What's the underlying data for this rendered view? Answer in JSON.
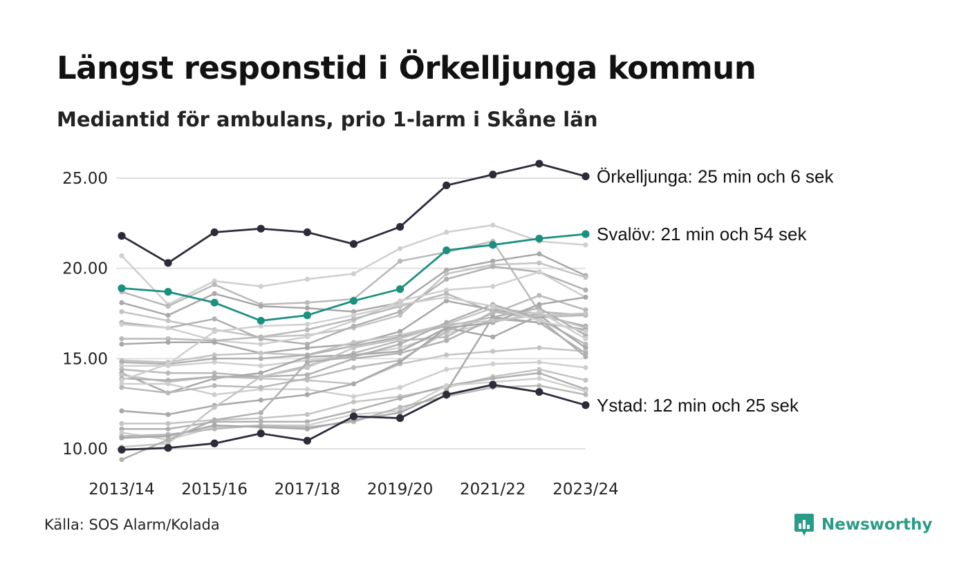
{
  "header": {
    "title": "Längst responstid i Örkelljunga kommun",
    "subtitle": "Mediantid för ambulans, prio 1-larm i Skåne län"
  },
  "footer": {
    "source": "Källa: SOS Alarm/Kolada",
    "brand": "Newsworthy",
    "brand_color": "#2a9b87"
  },
  "chart_data": {
    "type": "line",
    "title": "Längst responstid i Örkelljunga kommun",
    "subtitle": "Mediantid för ambulans, prio 1-larm i Skåne län",
    "xlabel": "",
    "ylabel": "",
    "x": [
      "2013/14",
      "2014/15",
      "2015/16",
      "2016/17",
      "2017/18",
      "2018/19",
      "2019/20",
      "2020/21",
      "2021/22",
      "2022/23",
      "2023/24"
    ],
    "x_tick_labels": [
      "2013/14",
      "2015/16",
      "2017/18",
      "2019/20",
      "2021/22",
      "2023/24"
    ],
    "ylim": [
      9.5,
      26
    ],
    "y_ticks": [
      10,
      15,
      20,
      25
    ],
    "y_tick_labels": [
      "10.00",
      "15.00",
      "20.00",
      "25.00"
    ],
    "grid": "horizontal",
    "highlighted_series": [
      {
        "label": "Örkelljunga: 25 min och 6 sek",
        "color": "#2b2b3a",
        "values": [
          21.8,
          20.3,
          22.0,
          22.2,
          22.0,
          21.35,
          22.3,
          24.6,
          25.2,
          25.8,
          25.1
        ]
      },
      {
        "label": "Svalöv: 21 min och 54 sek",
        "color": "#1a9080",
        "values": [
          18.9,
          18.7,
          18.1,
          17.1,
          17.4,
          18.2,
          18.85,
          21.0,
          21.3,
          21.65,
          21.9
        ]
      },
      {
        "label": "Ystad: 12 min och 25 sek",
        "color": "#2b2b3a",
        "values": [
          9.95,
          10.05,
          10.3,
          10.85,
          10.45,
          11.8,
          11.7,
          13.0,
          13.55,
          13.15,
          12.42
        ]
      }
    ],
    "background_series": [
      {
        "values": [
          20.7,
          18.0,
          19.3,
          19.0,
          19.4,
          19.7,
          21.1,
          22.0,
          22.4,
          21.5,
          21.3
        ]
      },
      {
        "values": [
          18.7,
          17.9,
          19.1,
          18.0,
          18.1,
          18.3,
          20.4,
          20.9,
          21.5,
          17.6,
          17.4
        ]
      },
      {
        "values": [
          18.1,
          17.4,
          18.6,
          17.9,
          17.8,
          17.6,
          18.1,
          19.9,
          20.4,
          20.8,
          19.6
        ]
      },
      {
        "values": [
          17.6,
          17.1,
          16.6,
          16.2,
          16.3,
          16.7,
          17.4,
          19.7,
          20.2,
          20.3,
          19.5
        ]
      },
      {
        "values": [
          17.0,
          16.7,
          17.2,
          16.1,
          15.8,
          16.8,
          17.6,
          19.4,
          20.1,
          19.8,
          18.8
        ]
      },
      {
        "values": [
          16.9,
          16.7,
          16.0,
          15.8,
          16.2,
          17.1,
          18.2,
          18.8,
          19.0,
          19.8,
          18.4
        ]
      },
      {
        "values": [
          16.1,
          16.1,
          16.0,
          16.2,
          16.6,
          17.2,
          17.9,
          18.6,
          17.6,
          17.3,
          17.4
        ]
      },
      {
        "values": [
          15.8,
          15.9,
          15.9,
          15.3,
          15.6,
          15.8,
          16.5,
          18.2,
          17.7,
          17.4,
          16.8
        ]
      },
      {
        "values": [
          14.9,
          14.8,
          15.2,
          15.3,
          15.2,
          15.9,
          16.3,
          16.9,
          17.8,
          17.5,
          16.7
        ]
      },
      {
        "values": [
          14.8,
          14.7,
          15.0,
          15.0,
          15.2,
          15.7,
          16.2,
          16.8,
          17.3,
          17.8,
          16.3
        ]
      },
      {
        "values": [
          14.6,
          14.6,
          14.8,
          14.6,
          14.9,
          15.2,
          15.6,
          16.4,
          17.0,
          17.6,
          16.1
        ]
      },
      {
        "values": [
          14.4,
          14.2,
          14.2,
          14.0,
          14.6,
          15.3,
          16.0,
          16.2,
          17.6,
          17.2,
          15.8
        ]
      },
      {
        "values": [
          14.2,
          13.1,
          13.9,
          14.2,
          15.1,
          15.2,
          15.4,
          16.7,
          16.2,
          17.4,
          15.6
        ]
      },
      {
        "values": [
          14.1,
          13.7,
          14.0,
          13.9,
          13.8,
          13.6,
          14.7,
          15.2,
          15.4,
          15.6,
          15.4
        ]
      },
      {
        "values": [
          13.9,
          13.8,
          14.0,
          14.0,
          14.1,
          15.0,
          15.3,
          16.0,
          17.2,
          17.0,
          15.3
        ]
      },
      {
        "values": [
          13.6,
          13.6,
          13.0,
          13.3,
          13.3,
          12.9,
          13.4,
          14.4,
          14.7,
          14.8,
          14.5
        ]
      },
      {
        "values": [
          13.4,
          13.1,
          13.5,
          13.4,
          13.9,
          14.5,
          14.9,
          16.5,
          17.5,
          18.5,
          17.7
        ]
      },
      {
        "values": [
          12.1,
          11.9,
          12.4,
          12.7,
          13.0,
          13.6,
          14.8,
          16.7,
          17.0,
          18.0,
          18.4
        ]
      },
      {
        "values": [
          11.4,
          11.4,
          11.6,
          11.7,
          11.9,
          12.6,
          12.9,
          13.4,
          14.0,
          14.4,
          13.8
        ]
      },
      {
        "values": [
          11.1,
          11.1,
          11.5,
          11.5,
          11.5,
          12.1,
          12.8,
          13.5,
          13.9,
          14.2,
          13.3
        ]
      },
      {
        "values": [
          10.9,
          10.5,
          11.2,
          11.3,
          11.3,
          11.9,
          12.1,
          13.5,
          13.7,
          13.9,
          13.2
        ]
      },
      {
        "values": [
          10.7,
          10.8,
          11.1,
          11.3,
          11.2,
          11.5,
          12.3,
          12.9,
          13.4,
          13.5,
          13.0
        ]
      },
      {
        "values": [
          10.6,
          10.7,
          11.3,
          11.2,
          11.1,
          11.6,
          12.0,
          13.2,
          17.3,
          17.0,
          16.6
        ]
      },
      {
        "values": [
          10.1,
          10.3,
          12.3,
          14.0,
          14.5,
          15.6,
          16.1,
          16.9,
          17.1,
          17.4,
          17.5
        ]
      },
      {
        "values": [
          9.4,
          10.5,
          11.6,
          12.0,
          14.8,
          15.1,
          15.8,
          17.0,
          18.0,
          17.2,
          15.1
        ]
      },
      {
        "values": [
          13.8,
          14.7,
          16.5,
          16.8,
          16.9,
          17.4,
          18.0,
          18.4,
          17.9,
          17.1,
          16.5
        ]
      }
    ]
  }
}
